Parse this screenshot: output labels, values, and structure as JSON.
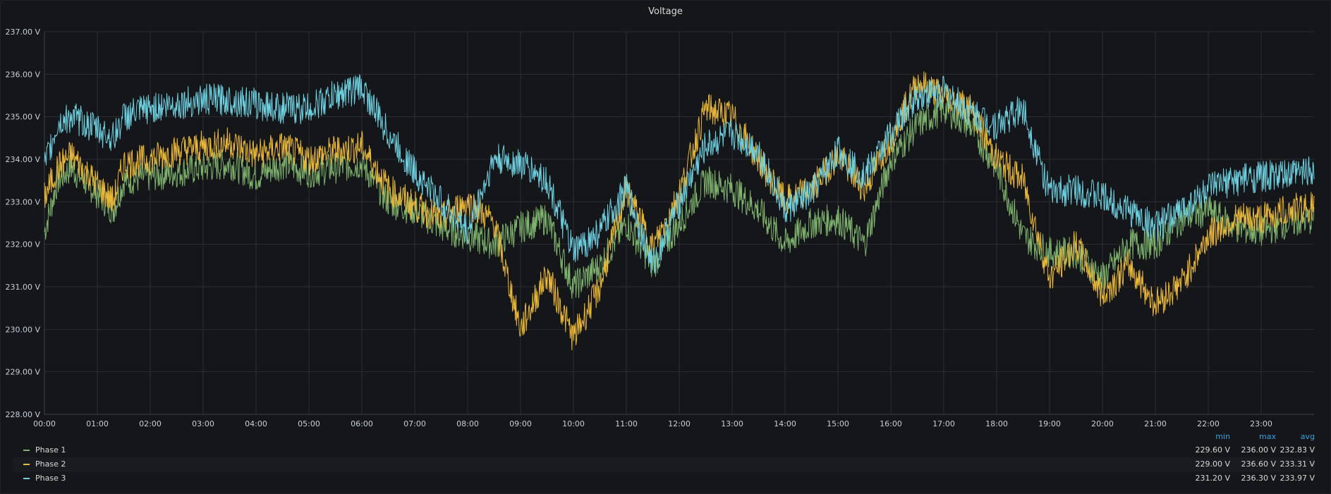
{
  "panel": {
    "title": "Voltage"
  },
  "legend": {
    "headers": {
      "min": "min",
      "max": "max",
      "avg": "avg"
    },
    "rows": [
      {
        "name": "Phase 1",
        "min": "229.60 V",
        "max": "236.00 V",
        "avg": "232.83 V",
        "color": "#7eb26d"
      },
      {
        "name": "Phase 2",
        "min": "229.00 V",
        "max": "236.60 V",
        "avg": "233.31 V",
        "color": "#eab839"
      },
      {
        "name": "Phase 3",
        "min": "231.20 V",
        "max": "236.30 V",
        "avg": "233.97 V",
        "color": "#6ed0e0"
      }
    ]
  },
  "chart_data": {
    "type": "line",
    "title": "Voltage",
    "x_unit": "hours",
    "xlim": [
      0,
      24
    ],
    "ylim": [
      228,
      237
    ],
    "x_ticks": [
      "00:00",
      "01:00",
      "02:00",
      "03:00",
      "04:00",
      "05:00",
      "06:00",
      "07:00",
      "08:00",
      "09:00",
      "10:00",
      "11:00",
      "12:00",
      "13:00",
      "14:00",
      "15:00",
      "16:00",
      "17:00",
      "18:00",
      "19:00",
      "20:00",
      "21:00",
      "22:00",
      "23:00"
    ],
    "y_ticks": [
      "228.00 V",
      "229.00 V",
      "230.00 V",
      "231.00 V",
      "232.00 V",
      "233.00 V",
      "234.00 V",
      "235.00 V",
      "236.00 V",
      "237.00 V"
    ],
    "grid": true,
    "legend_position": "bottom",
    "series": [
      {
        "name": "Phase 1",
        "color": "#7eb26d",
        "x": [
          0,
          0.25,
          0.5,
          1,
          1.3,
          1.5,
          2,
          2.5,
          3,
          3.5,
          4,
          4.5,
          5,
          5.5,
          6,
          6.5,
          7,
          7.5,
          8,
          8.5,
          9,
          9.5,
          10,
          10.5,
          11,
          11.5,
          12,
          12.5,
          13,
          13.5,
          14,
          14.5,
          15,
          15.5,
          16,
          16.5,
          17,
          17.5,
          18,
          18.5,
          19,
          19.5,
          20,
          20.5,
          21,
          21.5,
          22,
          22.5,
          23,
          23.5,
          24
        ],
        "y": [
          232.3,
          233.5,
          233.8,
          233.2,
          232.8,
          233.5,
          233.6,
          233.7,
          233.8,
          233.9,
          233.6,
          233.9,
          233.7,
          233.8,
          233.9,
          233.0,
          232.8,
          232.4,
          232.2,
          232.0,
          232.4,
          232.6,
          231.0,
          231.5,
          232.5,
          231.5,
          232.5,
          233.5,
          233.3,
          232.8,
          232.0,
          232.5,
          232.6,
          232.0,
          234.0,
          234.8,
          235.2,
          234.8,
          233.8,
          232.2,
          231.8,
          231.8,
          231.2,
          232.0,
          232.0,
          232.6,
          232.8,
          232.4,
          232.3,
          232.5,
          232.6
        ]
      },
      {
        "name": "Phase 2",
        "color": "#eab839",
        "x": [
          0,
          0.25,
          0.5,
          1,
          1.3,
          1.5,
          2,
          2.5,
          3,
          3.5,
          4,
          4.5,
          5,
          5.5,
          6,
          6.5,
          7,
          7.5,
          8,
          8.5,
          9,
          9.5,
          10,
          10.5,
          11,
          11.5,
          12,
          12.5,
          13,
          13.5,
          14,
          14.5,
          15,
          15.5,
          16,
          16.5,
          17,
          17.5,
          18,
          18.5,
          19,
          19.5,
          20,
          20.5,
          21,
          21.5,
          22,
          22.5,
          23,
          23.5,
          24
        ],
        "y": [
          233.1,
          233.8,
          234.1,
          233.4,
          233.0,
          233.9,
          234.0,
          234.2,
          234.3,
          234.4,
          234.1,
          234.3,
          234.0,
          234.2,
          234.3,
          233.3,
          232.9,
          232.6,
          233.0,
          232.5,
          230.0,
          231.3,
          229.8,
          231.0,
          233.3,
          231.9,
          233.2,
          235.2,
          235.0,
          234.0,
          233.0,
          233.3,
          234.1,
          233.3,
          234.5,
          235.8,
          235.5,
          235.2,
          234.0,
          233.5,
          231.2,
          232.0,
          230.8,
          231.5,
          230.6,
          231.1,
          232.2,
          232.6,
          232.6,
          232.8,
          232.9
        ]
      },
      {
        "name": "Phase 3",
        "color": "#6ed0e0",
        "x": [
          0,
          0.25,
          0.5,
          1,
          1.3,
          1.5,
          2,
          2.5,
          3,
          3.5,
          4,
          4.5,
          5,
          5.5,
          6,
          6.5,
          7,
          7.5,
          8,
          8.5,
          9,
          9.5,
          10,
          10.5,
          11,
          11.5,
          12,
          12.5,
          13,
          13.5,
          14,
          14.5,
          15,
          15.5,
          16,
          16.5,
          17,
          17.5,
          18,
          18.5,
          19,
          19.5,
          20,
          20.5,
          21,
          21.5,
          22,
          22.5,
          23,
          23.5,
          24
        ],
        "y": [
          233.8,
          234.8,
          235.0,
          234.7,
          234.5,
          235.0,
          235.2,
          235.3,
          235.4,
          235.4,
          235.3,
          235.2,
          235.2,
          235.5,
          235.7,
          234.6,
          233.7,
          233.0,
          232.3,
          234.0,
          233.9,
          233.5,
          231.8,
          232.3,
          233.3,
          231.5,
          233.0,
          234.3,
          234.6,
          234.2,
          232.8,
          233.2,
          234.2,
          233.6,
          234.6,
          235.5,
          235.6,
          235.1,
          234.8,
          235.2,
          233.2,
          233.3,
          233.1,
          232.8,
          232.4,
          232.8,
          233.3,
          233.5,
          233.6,
          233.6,
          233.8
        ]
      }
    ]
  }
}
